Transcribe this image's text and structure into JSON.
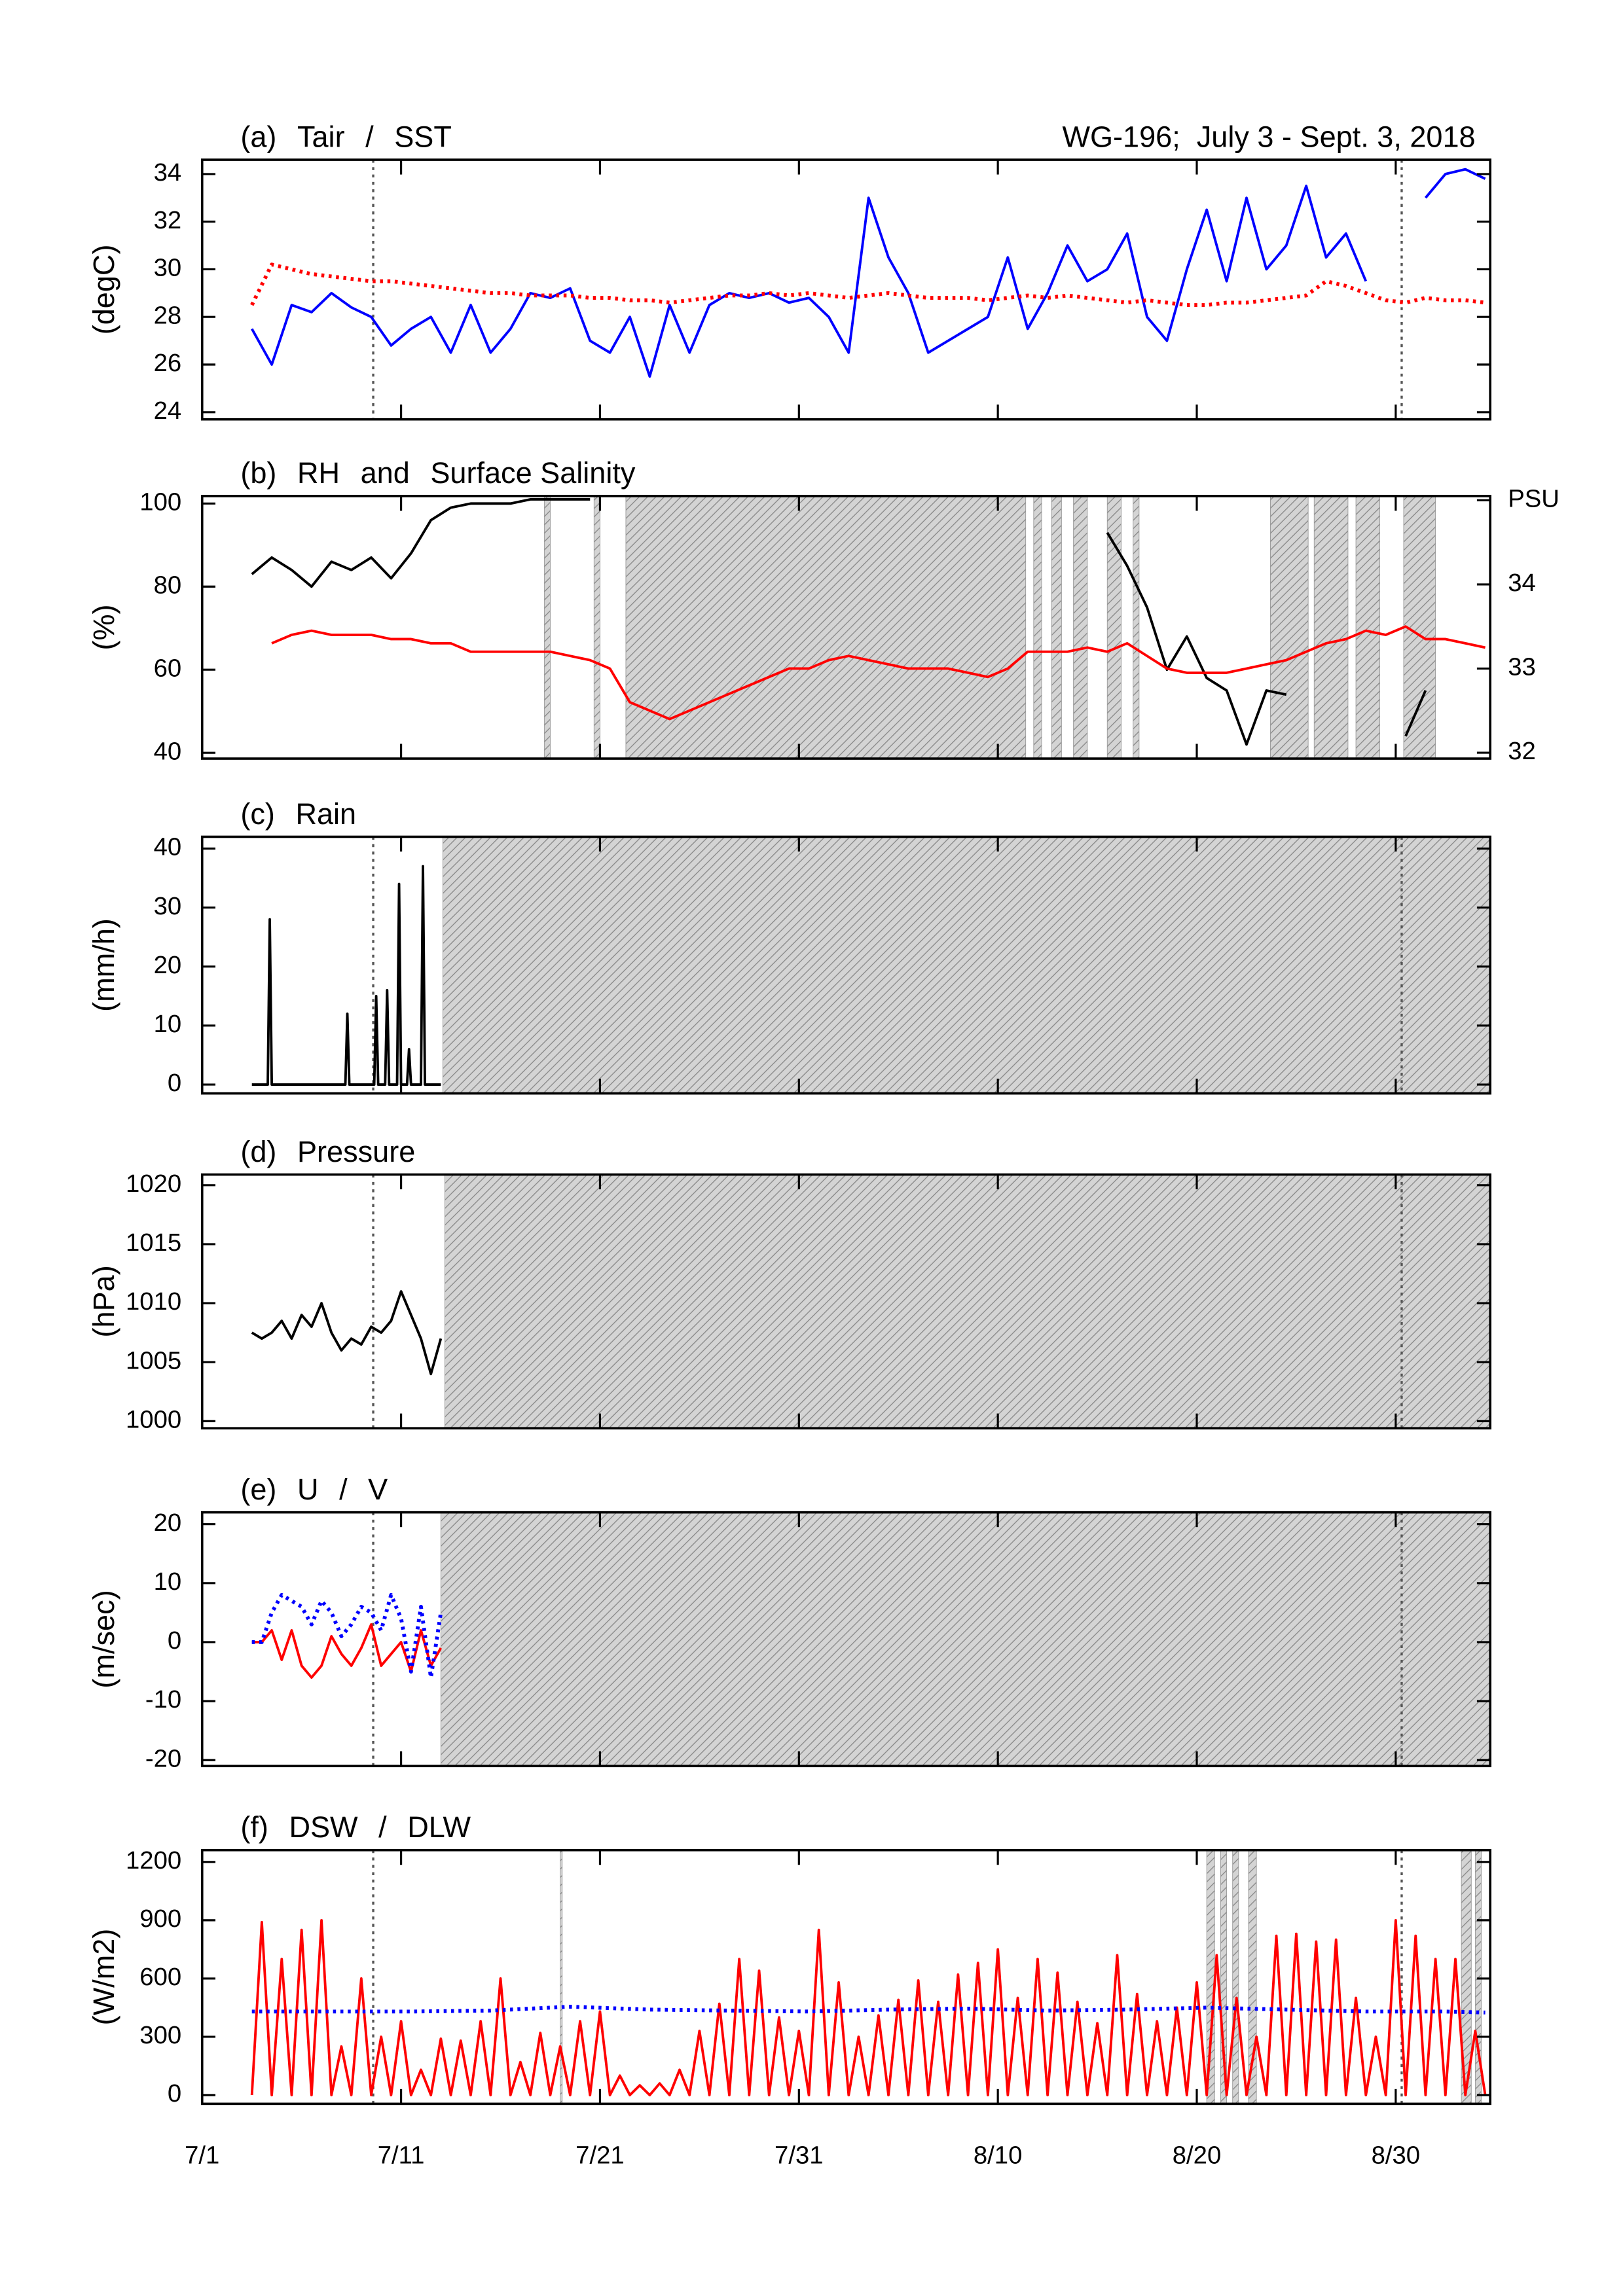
{
  "chart_data": [
    {
      "type": "line",
      "label": "(a)",
      "sep": "/",
      "title": "WG-196;  July 3 - Sept. 3, 2018",
      "ylabel": "(degC)",
      "xlim": [
        0,
        64.75
      ],
      "xticks": [
        0,
        10,
        20,
        30,
        40,
        50,
        60
      ],
      "ylim": [
        23.7,
        34.6
      ],
      "yticks": [
        24,
        26,
        28,
        30,
        32,
        34
      ],
      "vlines": [
        8.6,
        60.3
      ],
      "x": [
        2.5,
        3.5,
        4.5,
        5.5,
        6.5,
        7.5,
        8.5,
        9.5,
        10.5,
        11.5,
        12.5,
        13.5,
        14.5,
        15.5,
        16.5,
        17.5,
        18.5,
        19.5,
        20.5,
        21.5,
        22.5,
        23.5,
        24.5,
        25.5,
        26.5,
        27.5,
        28.5,
        29.5,
        30.5,
        31.5,
        32.5,
        33.5,
        34.5,
        35.5,
        36.5,
        37.5,
        38.5,
        39.5,
        40.5,
        41.5,
        42.5,
        43.5,
        44.5,
        45.5,
        46.5,
        47.5,
        48.5,
        49.5,
        50.5,
        51.5,
        52.5,
        53.5,
        54.5,
        55.5,
        56.5,
        57.5,
        58.5,
        59.5,
        60.5,
        61.5,
        62.5,
        63.5,
        64.5
      ],
      "series": [
        {
          "name": "Tair",
          "color": "#0000ff",
          "values": [
            27.5,
            26.0,
            28.5,
            28.2,
            29.0,
            28.4,
            28.0,
            26.8,
            27.5,
            28.0,
            26.5,
            28.5,
            26.5,
            27.5,
            29.0,
            28.8,
            29.2,
            27.0,
            26.5,
            28.0,
            25.5,
            28.5,
            26.5,
            28.5,
            29.0,
            28.8,
            29.0,
            28.6,
            28.8,
            28.0,
            26.5,
            33.0,
            30.5,
            29.0,
            26.5,
            27.0,
            27.5,
            28.0,
            30.5,
            27.5,
            29.0,
            31.0,
            29.5,
            30.0,
            31.5,
            28.0,
            27.0,
            30.0,
            32.5,
            29.5,
            33.0,
            30.0,
            31.0,
            33.5,
            30.5,
            31.5,
            29.5,
            null,
            null,
            33.0,
            34.0,
            34.2,
            33.8
          ]
        },
        {
          "name": "SST",
          "color": "#ff0000",
          "style": "dotted",
          "values": [
            28.5,
            30.2,
            30.0,
            29.8,
            29.7,
            29.6,
            29.5,
            29.5,
            29.4,
            29.3,
            29.2,
            29.1,
            29.0,
            29.0,
            28.9,
            28.9,
            28.9,
            28.8,
            28.8,
            28.7,
            28.7,
            28.6,
            28.7,
            28.8,
            28.9,
            28.9,
            29.0,
            28.9,
            29.0,
            28.9,
            28.8,
            28.9,
            29.0,
            28.9,
            28.8,
            28.8,
            28.8,
            28.7,
            28.8,
            28.9,
            28.8,
            28.9,
            28.8,
            28.7,
            28.6,
            28.7,
            28.6,
            28.5,
            28.5,
            28.6,
            28.6,
            28.7,
            28.8,
            28.9,
            29.5,
            29.3,
            29.0,
            28.7,
            28.6,
            28.8,
            28.7,
            28.7,
            28.6
          ]
        }
      ]
    },
    {
      "type": "line",
      "label": "(b)",
      "sep": "and",
      "ylabel": "(%)",
      "xlim": [
        0,
        64.75
      ],
      "xticks": [
        0,
        10,
        20,
        30,
        40,
        50,
        60
      ],
      "ylim": [
        38.6,
        101.8
      ],
      "yticks": [
        40,
        60,
        80,
        100
      ],
      "y2lim": [
        31.93,
        35.05
      ],
      "y2ticks": [
        32,
        33,
        34,
        {
          "value": 35,
          "label": "PSU"
        }
      ],
      "shade": [
        [
          17.2,
          17.5
        ],
        [
          19.7,
          20.0
        ],
        [
          21.3,
          41.4
        ],
        [
          41.8,
          42.2
        ],
        [
          42.7,
          43.2
        ],
        [
          43.8,
          44.5
        ],
        [
          45.5,
          46.2
        ],
        [
          46.8,
          47.1
        ],
        [
          53.7,
          55.6
        ],
        [
          55.9,
          57.6
        ],
        [
          58.0,
          59.2
        ],
        [
          60.4,
          62.0
        ]
      ],
      "x": [
        2.5,
        3.5,
        4.5,
        5.5,
        6.5,
        7.5,
        8.5,
        9.5,
        10.5,
        11.5,
        12.5,
        13.5,
        14.5,
        15.5,
        16.5,
        17.5,
        18.5,
        19.5,
        20.5,
        21.5,
        22.5,
        23.5,
        24.5,
        25.5,
        26.5,
        27.5,
        28.5,
        29.5,
        30.5,
        31.5,
        32.5,
        33.5,
        34.5,
        35.5,
        36.5,
        37.5,
        38.5,
        39.5,
        40.5,
        41.5,
        42.5,
        43.5,
        44.5,
        45.5,
        46.5,
        47.5,
        48.5,
        49.5,
        50.5,
        51.5,
        52.5,
        53.5,
        54.5,
        55.5,
        56.5,
        57.5,
        58.5,
        59.5,
        60.5,
        61.5,
        62.5,
        63.5,
        64.5
      ],
      "series": [
        {
          "name": "RH",
          "color": "#000000",
          "values": [
            83,
            87,
            84,
            80,
            86,
            84,
            87,
            82,
            88,
            96,
            99,
            100,
            100,
            100,
            101,
            101,
            101,
            101,
            null,
            null,
            null,
            null,
            null,
            null,
            null,
            null,
            null,
            null,
            null,
            null,
            null,
            null,
            null,
            null,
            null,
            null,
            null,
            null,
            null,
            null,
            null,
            null,
            null,
            93,
            85,
            75,
            60,
            68,
            58,
            55,
            42,
            55,
            54,
            null,
            null,
            null,
            null,
            null,
            44,
            55,
            null,
            null,
            null
          ]
        },
        {
          "name": "Surface Salinity",
          "color": "#ff0000",
          "axis": "y2",
          "values": [
            null,
            33.3,
            33.4,
            33.45,
            33.4,
            33.4,
            33.4,
            33.35,
            33.35,
            33.3,
            33.3,
            33.2,
            33.2,
            33.2,
            33.2,
            33.2,
            33.15,
            33.1,
            33.0,
            32.6,
            32.5,
            32.4,
            32.5,
            32.6,
            32.7,
            32.8,
            32.9,
            33.0,
            33.0,
            33.1,
            33.15,
            33.1,
            33.05,
            33.0,
            33.0,
            33.0,
            32.95,
            32.9,
            33.0,
            33.2,
            33.2,
            33.2,
            33.25,
            33.2,
            33.3,
            33.15,
            33.0,
            32.95,
            32.95,
            32.95,
            33.0,
            33.05,
            33.1,
            33.2,
            33.3,
            33.35,
            33.45,
            33.4,
            33.5,
            33.35,
            33.35,
            33.3,
            33.25
          ]
        }
      ]
    },
    {
      "type": "line",
      "label": "(c)",
      "ylabel": "(mm/h)",
      "xlim": [
        0,
        64.75
      ],
      "xticks": [
        0,
        10,
        20,
        30,
        40,
        50,
        60
      ],
      "ylim": [
        -1.5,
        42
      ],
      "yticks": [
        0,
        10,
        20,
        30,
        40
      ],
      "shade": [
        [
          12.1,
          64.75
        ]
      ],
      "vlines": [
        8.6,
        60.3
      ],
      "x": [
        2.5,
        3.3,
        3.4,
        3.5,
        7.2,
        7.3,
        7.4,
        8.65,
        8.75,
        8.85,
        9.2,
        9.3,
        9.4,
        9.8,
        9.9,
        10.0,
        10.3,
        10.4,
        10.5,
        11.0,
        11.1,
        11.2,
        12.0
      ],
      "series": [
        {
          "name": "Rain",
          "color": "#000000",
          "values": [
            0,
            0,
            28,
            0,
            0,
            12,
            0,
            0,
            15,
            0,
            0,
            16,
            0,
            0,
            34,
            0,
            0,
            6,
            0,
            0,
            37,
            0,
            0
          ]
        }
      ]
    },
    {
      "type": "line",
      "label": "(d)",
      "ylabel": "(hPa)",
      "xlim": [
        0,
        64.75
      ],
      "xticks": [
        0,
        10,
        20,
        30,
        40,
        50,
        60
      ],
      "ylim": [
        999.4,
        1020.9
      ],
      "yticks": [
        1000,
        1005,
        1010,
        1015,
        1020
      ],
      "shade": [
        [
          12.2,
          64.75
        ]
      ],
      "vlines": [
        8.6,
        60.3
      ],
      "x": [
        2.5,
        3,
        3.5,
        4,
        4.5,
        5,
        5.5,
        6,
        6.5,
        7,
        7.5,
        8,
        8.5,
        9,
        9.5,
        10,
        10.5,
        11,
        11.5,
        12
      ],
      "series": [
        {
          "name": "Pressure",
          "color": "#000000",
          "values": [
            1007.5,
            1007,
            1007.5,
            1008.5,
            1007,
            1009,
            1008,
            1010,
            1007.5,
            1006,
            1007,
            1006.5,
            1008,
            1007.5,
            1008.5,
            1011,
            1009,
            1007,
            1004,
            1007
          ]
        }
      ]
    },
    {
      "type": "line",
      "label": "(e)",
      "sep": "/",
      "ylabel": "(m/sec)",
      "xlim": [
        0,
        64.75
      ],
      "xticks": [
        0,
        10,
        20,
        30,
        40,
        50,
        60
      ],
      "ylim": [
        -21,
        22
      ],
      "yticks": [
        -20,
        -10,
        0,
        10,
        20
      ],
      "shade": [
        [
          12.0,
          64.75
        ]
      ],
      "vlines": [
        8.6,
        60.3
      ],
      "x": [
        2.5,
        3,
        3.5,
        4,
        4.5,
        5,
        5.5,
        6,
        6.5,
        7,
        7.5,
        8,
        8.5,
        9,
        9.5,
        10,
        10.5,
        11,
        11.5,
        12
      ],
      "series": [
        {
          "name": "U",
          "color": "#ff0000",
          "values": [
            0,
            0,
            2,
            -3,
            2,
            -4,
            -6,
            -4,
            1,
            -2,
            -4,
            -1,
            3,
            -4,
            -2,
            0,
            -5,
            2,
            -4,
            -1
          ]
        },
        {
          "name": "V",
          "color": "#0000ff",
          "style": "dotted",
          "values": [
            0,
            0,
            5,
            8,
            7,
            6,
            3,
            7,
            5,
            1,
            3,
            6,
            5,
            2,
            8,
            4,
            -5,
            6,
            -6,
            5
          ]
        }
      ]
    },
    {
      "type": "line",
      "label": "(f)",
      "sep": "/",
      "ylabel": "(W/m2)",
      "xlim": [
        0,
        64.75
      ],
      "xticks": [
        {
          "value": 0,
          "label": "7/1"
        },
        {
          "value": 10,
          "label": "7/11"
        },
        {
          "value": 20,
          "label": "7/21"
        },
        {
          "value": 30,
          "label": "7/31"
        },
        {
          "value": 40,
          "label": "8/10"
        },
        {
          "value": 50,
          "label": "8/20"
        },
        {
          "value": 60,
          "label": "8/30"
        }
      ],
      "ylim": [
        -45,
        1261
      ],
      "yticks": [
        0,
        300,
        600,
        900,
        1200
      ],
      "shade": [
        [
          18.0,
          18.1
        ],
        [
          50.5,
          50.9
        ],
        [
          51.2,
          51.5
        ],
        [
          51.8,
          52.1
        ],
        [
          52.6,
          53.0
        ],
        [
          63.3,
          63.8
        ],
        [
          64.0,
          64.3
        ]
      ],
      "vlines": [
        8.6,
        60.3
      ],
      "x": [
        2.5,
        3,
        3.5,
        4,
        4.5,
        5,
        5.5,
        6,
        6.5,
        7,
        7.5,
        8,
        8.5,
        9,
        9.5,
        10,
        10.5,
        11,
        11.5,
        12,
        12.5,
        13,
        13.5,
        14,
        14.5,
        15,
        15.5,
        16,
        16.5,
        17,
        17.5,
        18,
        18.5,
        19,
        19.5,
        20,
        20.5,
        21,
        21.5,
        22,
        22.5,
        23,
        23.5,
        24,
        24.5,
        25,
        25.5,
        26,
        26.5,
        27,
        27.5,
        28,
        28.5,
        29,
        29.5,
        30,
        30.5,
        31,
        31.5,
        32,
        32.5,
        33,
        33.5,
        34,
        34.5,
        35,
        35.5,
        36,
        36.5,
        37,
        37.5,
        38,
        38.5,
        39,
        39.5,
        40,
        40.5,
        41,
        41.5,
        42,
        42.5,
        43,
        43.5,
        44,
        44.5,
        45,
        45.5,
        46,
        46.5,
        47,
        47.5,
        48,
        48.5,
        49,
        49.5,
        50,
        50.5,
        51,
        51.5,
        52,
        52.5,
        53,
        53.5,
        54,
        54.5,
        55,
        55.5,
        56,
        56.5,
        57,
        57.5,
        58,
        58.5,
        59,
        59.5,
        60,
        60.5,
        61,
        61.5,
        62,
        62.5,
        63,
        63.5,
        64,
        64.5
      ],
      "series": [
        {
          "name": "DSW",
          "color": "#ff0000",
          "values": [
            0,
            890,
            0,
            700,
            0,
            850,
            0,
            900,
            0,
            250,
            0,
            600,
            0,
            300,
            0,
            380,
            0,
            130,
            0,
            290,
            0,
            280,
            0,
            380,
            0,
            600,
            0,
            170,
            0,
            320,
            0,
            250,
            0,
            380,
            0,
            430,
            0,
            100,
            0,
            50,
            0,
            60,
            0,
            130,
            0,
            330,
            0,
            470,
            0,
            700,
            0,
            640,
            0,
            400,
            0,
            330,
            0,
            850,
            0,
            580,
            0,
            300,
            0,
            410,
            0,
            490,
            0,
            590,
            0,
            480,
            0,
            620,
            0,
            680,
            0,
            750,
            0,
            500,
            0,
            700,
            0,
            630,
            0,
            480,
            0,
            370,
            0,
            720,
            0,
            520,
            0,
            380,
            0,
            450,
            0,
            580,
            0,
            720,
            0,
            500,
            0,
            300,
            0,
            820,
            0,
            830,
            0,
            790,
            0,
            800,
            0,
            500,
            0,
            300,
            0,
            900,
            0,
            820,
            0,
            700,
            0,
            700,
            0,
            330,
            0
          ]
        },
        {
          "name": "DLW",
          "color": "#0000ff",
          "style": "dotted",
          "x": [
            2.5,
            6.5,
            10.5,
            14.5,
            18.5,
            22.5,
            26.5,
            30.5,
            34.5,
            38.5,
            42.5,
            46.5,
            50.5,
            54.5,
            58.5,
            62.5,
            64.5
          ],
          "values": [
            430,
            430,
            430,
            435,
            455,
            440,
            435,
            430,
            440,
            445,
            435,
            440,
            450,
            440,
            430,
            430,
            425
          ]
        }
      ]
    }
  ]
}
